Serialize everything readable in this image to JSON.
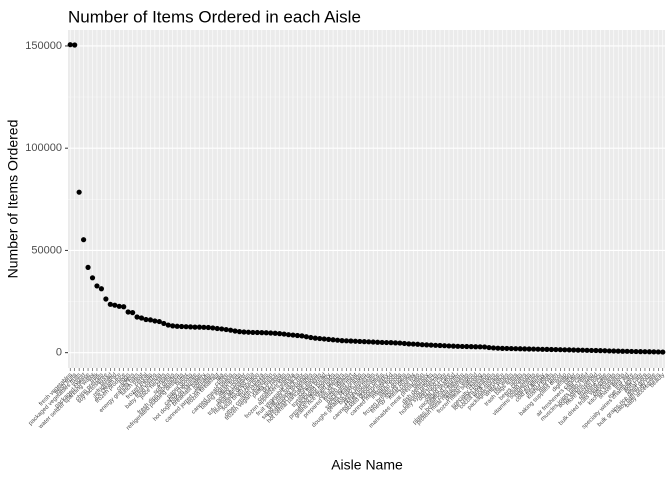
{
  "chart_data": {
    "type": "scatter",
    "title": "Number of Items Ordered in each Aisle",
    "x_label": "Aisle Name",
    "y_label": "Number of Items Ordered",
    "categories": [
      "fresh vegetables",
      "fresh fruits",
      "packaged vegetables fruits",
      "yogurt",
      "packaged cheese",
      "water seltzer sparkling water",
      "milk",
      "chips pretzels",
      "soy lactosefree",
      "bread",
      "refrigerated",
      "ice cream ice",
      "frozen produce",
      "eggs",
      "crackers",
      "energy granola bars",
      "lunch meat",
      "cereal",
      "frozen meals",
      "fresh herbs",
      "baby food formula",
      "juice nectars",
      "cream",
      "soft drinks",
      "fresh dips tapenades",
      "refrigerated pudding desserts",
      "butter",
      "paper goods",
      "candy chocolate",
      "hot dogs bacon sausage",
      "breakfast bakery",
      "spreads",
      "canned jarred vegetables",
      "frozen breakfast",
      "tea",
      "coffee",
      "canned meals beans",
      "baking ingredients",
      "asian foods",
      "poultry counter",
      "tofu meat alternatives",
      "nuts seeds dried fruit",
      "soup broth bouillon",
      "frozen pizza",
      "other creams cheeses",
      "frozen vegan vegetarian",
      "pasta sauce",
      "dry pasta",
      "cookies cakes",
      "frozen appetizers sides",
      "granola",
      "fruit vegetable snacks",
      "trail mix snack mix",
      "salad dressing toppings",
      "breakfast bars pastries",
      "hot cereal pancake mixes",
      "condiments",
      "tortillas flat bread",
      "packaged poultry",
      "preserved dips spreads",
      "grains rice dried goods",
      "oils vinegars",
      "prepared soups salads",
      "frozen dessert",
      "packaged meat",
      "spices seasonings",
      "doughs gelatins bake mixes",
      "bakery desserts",
      "prepared meals",
      "canned fruit applesauce",
      "pickled goods olives",
      "popcorn jerky",
      "canned meat seafood",
      "instant foods",
      "latino foods",
      "frozen breads doughs",
      "energy sports drinks",
      "meat counter",
      "buns rolls",
      "marinades meat preparation",
      "laundry",
      "dish detergents",
      "cleaning products",
      "honey syrups nectars",
      "dog food care",
      "cat food care",
      "packaged seafood",
      "seafood counter",
      "plates bowls cups flatware",
      "protein meal replacements",
      "diapers wipes",
      "frozen meat seafood",
      "missing",
      "specialty cheeses",
      "ice cream toppings",
      "cocoa drink mixes",
      "food storage",
      "packaged produce",
      "white wines",
      "red wines",
      "trash bags liners",
      "spirits",
      "beers coolers",
      "indian foods",
      "vitamins supplements",
      "oral hygiene",
      "cold flu allergy",
      "fresh pasta",
      "kosher foods",
      "mint gum",
      "baking supplies decor",
      "soap",
      "digestion",
      "other",
      "air fresheners candles",
      "hair care",
      "muscles joints pain relief",
      "body lotions soap",
      "more household",
      "frozen juice",
      "feminine care",
      "bulk dried fruits vegetables",
      "deodorants",
      "kitchen supplies",
      "shave needs",
      "first aid",
      "eye ear care",
      "specialty wines champagnes",
      "skin care",
      "facial care",
      "bulk grains rice dried goods",
      "baby bath body care",
      "baby accessories",
      "beauty"
    ],
    "values": [
      150609,
      150473,
      78493,
      55240,
      41699,
      36617,
      32644,
      31269,
      26240,
      23635,
      23228,
      22676,
      22453,
      19875,
      19592,
      17449,
      16957,
      16201,
      16048,
      15500,
      15200,
      14300,
      13500,
      13100,
      12900,
      12800,
      12700,
      12600,
      12500,
      12500,
      12400,
      12300,
      12100,
      11800,
      11600,
      11300,
      11000,
      10600,
      10300,
      10100,
      10000,
      9900,
      9850,
      9800,
      9750,
      9600,
      9500,
      9300,
      9100,
      8800,
      8600,
      8400,
      8200,
      7800,
      7400,
      7100,
      6900,
      6700,
      6500,
      6300,
      6100,
      5900,
      5800,
      5700,
      5600,
      5500,
      5400,
      5300,
      5200,
      5100,
      5000,
      4950,
      4900,
      4800,
      4700,
      4500,
      4300,
      4200,
      4100,
      3900,
      3800,
      3700,
      3600,
      3500,
      3400,
      3300,
      3200,
      3100,
      3050,
      3000,
      2950,
      2900,
      2850,
      2800,
      2500,
      2300,
      2200,
      2100,
      2050,
      2000,
      1950,
      1900,
      1850,
      1800,
      1750,
      1700,
      1650,
      1600,
      1550,
      1500,
      1450,
      1400,
      1350,
      1300,
      1250,
      1200,
      1150,
      1100,
      1050,
      1000,
      950,
      850,
      800,
      750,
      700,
      650,
      600,
      550,
      500,
      470,
      440,
      400,
      350,
      290
    ],
    "color": "#000000",
    "ylim": [
      -7500,
      157800
    ],
    "yticks": [
      0,
      50000,
      100000,
      150000
    ],
    "grid": true
  }
}
